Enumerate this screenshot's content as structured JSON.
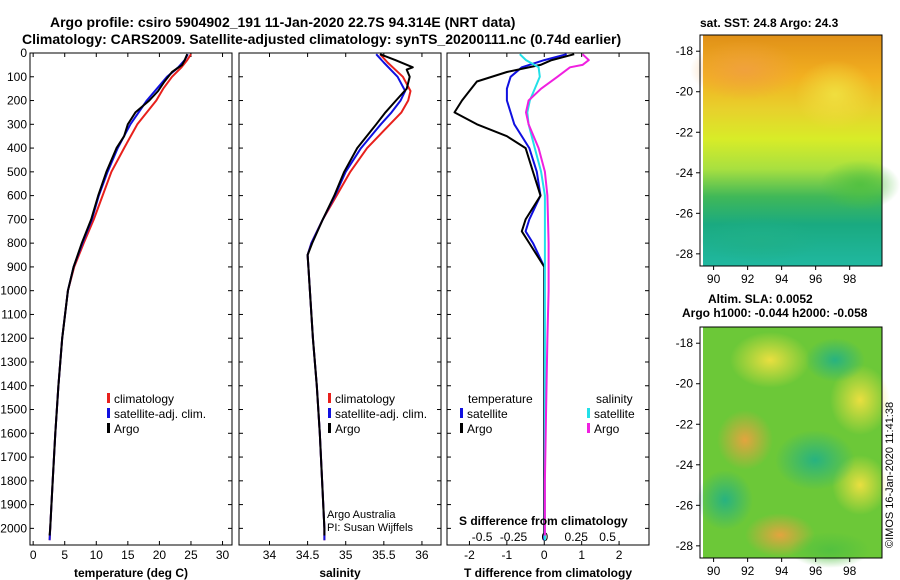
{
  "header": {
    "title_line1": "Argo profile: csiro 5904902_191 11-Jan-2020 22.7S 94.314E (NRT data)",
    "title_line2": "Climatology: CARS2009. Satellite-adjusted climatology: synTS_20200111.nc (0.74d earlier)"
  },
  "colors": {
    "climatology": "#e8201c",
    "satellite": "#1010e0",
    "argo": "#000000",
    "sat_salt": "#22e0e8",
    "argo_salt": "#f020e0"
  },
  "chart_data": [
    {
      "id": "temperature",
      "type": "line",
      "xlabel": "temperature (deg C)",
      "xlim": [
        -0.5,
        31.5
      ],
      "ylim": [
        0,
        2070
      ],
      "xticks": [
        0,
        5,
        10,
        15,
        20,
        25,
        30
      ],
      "xtick_labels": [
        "0",
        "5",
        "10",
        "15",
        "20",
        "25",
        "30"
      ],
      "yticks": [
        0,
        100,
        200,
        300,
        400,
        500,
        600,
        700,
        800,
        900,
        1000,
        1100,
        1200,
        1300,
        1400,
        1500,
        1600,
        1700,
        1800,
        1900,
        2000
      ],
      "legend": [
        "climatology",
        "satellite-adj. clim.",
        "Argo"
      ],
      "series": [
        {
          "name": "climatology",
          "depth": [
            5,
            30,
            60,
            100,
            150,
            200,
            300,
            400,
            500,
            600,
            700,
            800,
            900,
            1000,
            1200,
            1400,
            1600,
            1800,
            2000,
            2050
          ],
          "values": [
            25.0,
            24.4,
            23.5,
            22.0,
            20.6,
            19.5,
            16.5,
            14.4,
            12.4,
            11.0,
            9.6,
            8.0,
            6.5,
            5.5,
            4.6,
            4.0,
            3.5,
            3.1,
            2.7,
            2.6
          ]
        },
        {
          "name": "satellite-adj. clim.",
          "depth": [
            5,
            30,
            60,
            100,
            150,
            200,
            300,
            400,
            500,
            600,
            700,
            800,
            900,
            1000,
            1200,
            1400,
            1600,
            1800,
            2000,
            2050
          ],
          "values": [
            24.5,
            24.0,
            23.0,
            21.2,
            19.6,
            18.0,
            15.4,
            13.4,
            11.8,
            10.4,
            9.3,
            7.8,
            6.4,
            5.5,
            4.6,
            4.0,
            3.5,
            3.1,
            2.7,
            2.6
          ]
        },
        {
          "name": "Argo",
          "depth": [
            5,
            30,
            50,
            80,
            120,
            160,
            200,
            250,
            300,
            350,
            400,
            500,
            600,
            700,
            800,
            900,
            1000,
            1200,
            1400,
            1600,
            1800,
            2000,
            2030
          ],
          "values": [
            24.4,
            24.0,
            23.6,
            22.0,
            20.8,
            19.8,
            18.4,
            16.2,
            15.0,
            14.4,
            13.2,
            11.6,
            10.3,
            9.2,
            7.7,
            6.4,
            5.5,
            4.6,
            4.0,
            3.5,
            3.1,
            2.7,
            2.6
          ]
        }
      ]
    },
    {
      "id": "salinity",
      "type": "line",
      "xlabel": "salinity",
      "xlim": [
        33.6,
        36.25
      ],
      "ylim": [
        0,
        2070
      ],
      "xticks": [
        34,
        34.5,
        35,
        35.5,
        36
      ],
      "xtick_labels": [
        "34",
        "34.5",
        "35",
        "35.5",
        "36"
      ],
      "yticks": [
        0,
        100,
        200,
        300,
        400,
        500,
        600,
        700,
        800,
        900,
        1000,
        1100,
        1200,
        1300,
        1400,
        1500,
        1600,
        1700,
        1800,
        1900,
        2000
      ],
      "legend": [
        "climatology",
        "satellite-adj. clim.",
        "Argo"
      ],
      "series": [
        {
          "name": "climatology",
          "depth": [
            5,
            40,
            100,
            160,
            200,
            250,
            300,
            400,
            500,
            600,
            700,
            800,
            850,
            900,
            1000,
            1200,
            1400,
            1600,
            1800,
            2000,
            2050
          ],
          "values": [
            35.45,
            35.55,
            35.75,
            35.85,
            35.82,
            35.73,
            35.58,
            35.28,
            35.06,
            34.88,
            34.7,
            34.55,
            34.5,
            34.51,
            34.53,
            34.57,
            34.62,
            34.66,
            34.69,
            34.72,
            34.72
          ]
        },
        {
          "name": "satellite-adj. clim.",
          "depth": [
            5,
            40,
            100,
            160,
            200,
            250,
            300,
            400,
            500,
            600,
            700,
            800,
            850,
            900,
            1000,
            1200,
            1400,
            1600,
            1800,
            2000,
            2050
          ],
          "values": [
            35.4,
            35.5,
            35.68,
            35.78,
            35.72,
            35.6,
            35.46,
            35.2,
            35.0,
            34.86,
            34.7,
            34.55,
            34.5,
            34.51,
            34.53,
            34.57,
            34.62,
            34.66,
            34.69,
            34.72,
            34.72
          ]
        },
        {
          "name": "Argo",
          "depth": [
            5,
            30,
            60,
            70,
            100,
            150,
            200,
            250,
            300,
            400,
            500,
            600,
            700,
            800,
            850,
            900,
            1000,
            1200,
            1400,
            1600,
            1800,
            2000,
            2030
          ],
          "values": [
            35.45,
            35.65,
            35.88,
            35.8,
            35.84,
            35.8,
            35.66,
            35.52,
            35.4,
            35.15,
            34.98,
            34.85,
            34.7,
            34.56,
            34.5,
            34.51,
            34.53,
            34.57,
            34.62,
            34.66,
            34.69,
            34.72,
            34.72
          ]
        }
      ],
      "annotation": [
        "Argo Australia",
        "PI: Susan Wijffels"
      ]
    },
    {
      "id": "differences",
      "type": "line",
      "xlabel": "T difference from climatology",
      "xlabel_top": "S difference from climatology",
      "xlim": [
        -2.6,
        2.8
      ],
      "ylim": [
        0,
        2070
      ],
      "xticks": [
        -2,
        -1,
        0,
        1,
        2
      ],
      "xtick_labels": [
        "-2",
        "-1",
        "0",
        "1",
        "2"
      ],
      "sticks": [
        -0.5,
        -0.25,
        0,
        0.25,
        0.5
      ],
      "stick_labels": [
        "-0.5",
        "-0.25",
        "0",
        "0.25",
        "0.5"
      ],
      "yticks": [
        0,
        100,
        200,
        300,
        400,
        500,
        600,
        700,
        800,
        900,
        1000,
        1100,
        1200,
        1300,
        1400,
        1500,
        1600,
        1700,
        1800,
        1900,
        2000
      ],
      "legend_left_title": "temperature",
      "legend_right_title": "salinity",
      "legend_left": [
        "satellite",
        "Argo"
      ],
      "legend_right": [
        "satellite",
        "Argo"
      ],
      "series": [
        {
          "name": "T satellite",
          "units": "deg C",
          "depth": [
            5,
            30,
            60,
            100,
            150,
            200,
            300,
            400,
            500,
            600,
            700,
            750,
            800,
            900,
            1000,
            1200,
            1500,
            1800,
            2000,
            2050
          ],
          "values": [
            0.6,
            0.0,
            -0.6,
            -0.9,
            -1.0,
            -1.0,
            -0.8,
            -0.4,
            -0.2,
            -0.1,
            -0.4,
            -0.5,
            -0.3,
            0.0,
            0.0,
            0.0,
            0.0,
            0.0,
            0.0,
            0.0
          ]
        },
        {
          "name": "T Argo",
          "units": "deg C",
          "depth": [
            5,
            30,
            50,
            80,
            120,
            160,
            200,
            250,
            300,
            350,
            400,
            500,
            600,
            700,
            750,
            800,
            900,
            1000,
            1200,
            1500,
            1800,
            2000,
            2030
          ],
          "values": [
            0.8,
            0.2,
            -0.1,
            -1.0,
            -1.8,
            -2.0,
            -2.2,
            -2.4,
            -1.8,
            -1.0,
            -0.5,
            -0.3,
            -0.1,
            -0.5,
            -0.6,
            -0.4,
            0.0,
            0.0,
            0.0,
            0.0,
            0.0,
            0.0,
            0.0
          ]
        },
        {
          "name": "S satellite",
          "units": "psu",
          "depth": [
            5,
            30,
            60,
            100,
            150,
            200,
            250,
            300,
            400,
            500,
            600,
            800,
            1000,
            1500,
            2000,
            2050
          ],
          "values": [
            -0.2,
            -0.15,
            -0.05,
            -0.04,
            -0.08,
            -0.12,
            -0.14,
            -0.13,
            -0.08,
            -0.03,
            0.0,
            0.0,
            0.0,
            0.0,
            0.0,
            0.0
          ]
        },
        {
          "name": "S Argo",
          "units": "psu",
          "depth": [
            5,
            30,
            50,
            60,
            100,
            150,
            200,
            250,
            300,
            400,
            500,
            600,
            800,
            1000,
            1200,
            1500,
            1800,
            2000,
            2030
          ],
          "values": [
            0.3,
            0.35,
            0.3,
            0.2,
            0.1,
            -0.03,
            -0.13,
            -0.15,
            -0.13,
            -0.05,
            0.0,
            0.02,
            0.03,
            0.03,
            0.02,
            0.01,
            0.0,
            0.0,
            0.0
          ]
        }
      ]
    }
  ],
  "maps": {
    "sst": {
      "title": "sat. SST: 24.8 Argo: 24.3",
      "xticks": [
        90,
        92,
        94,
        96,
        98
      ],
      "xtick_labels": [
        "90",
        "92",
        "94",
        "96",
        "98"
      ],
      "yticks": [
        -18,
        -20,
        -22,
        -24,
        -26,
        -28
      ],
      "ytick_labels": [
        "-18",
        "-20",
        "-22",
        "-24",
        "-26",
        "-28"
      ]
    },
    "sla": {
      "title_line1": "Altim. SLA: 0.0052",
      "title_line2": "Argo h1000: -0.044 h2000: -0.058",
      "xticks": [
        90,
        92,
        94,
        96,
        98
      ],
      "xtick_labels": [
        "90",
        "92",
        "94",
        "96",
        "98"
      ],
      "yticks": [
        -18,
        -20,
        -22,
        -24,
        -26,
        -28
      ],
      "ytick_labels": [
        "-18",
        "-20",
        "-22",
        "-24",
        "-26",
        "-28"
      ]
    }
  },
  "credit": "©IMOS 16-Jan-2020 11:41:38"
}
